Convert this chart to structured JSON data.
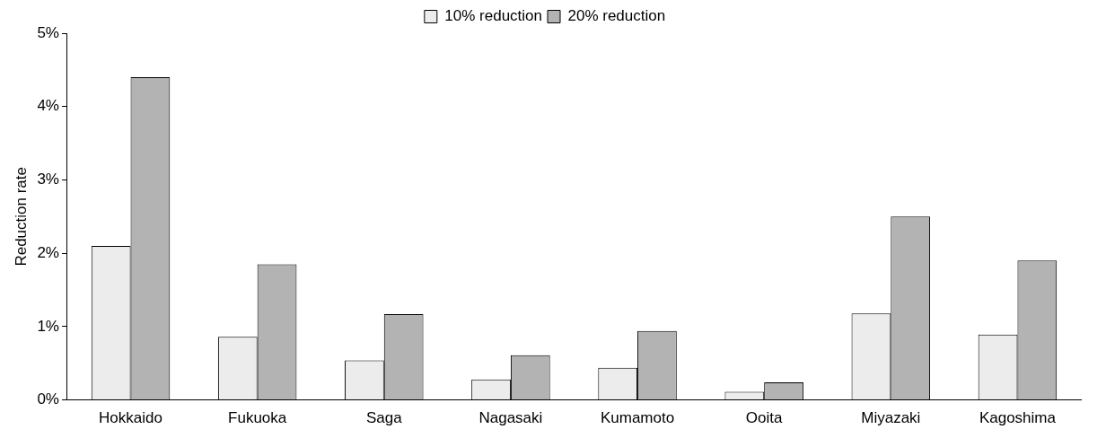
{
  "chart_data": {
    "type": "bar",
    "ylabel": "Reduction rate",
    "categories": [
      "Hokkaido",
      "Fukuoka",
      "Saga",
      "Nagasaki",
      "Kumamoto",
      "Ooita",
      "Miyazaki",
      "Kagoshima"
    ],
    "series": [
      {
        "name": "10% reduction",
        "color": "#ececec",
        "values": [
          2.1,
          0.86,
          0.54,
          0.28,
          0.44,
          0.11,
          1.18,
          0.89
        ]
      },
      {
        "name": "20% reduction",
        "color": "#b3b3b3",
        "values": [
          4.4,
          1.85,
          1.17,
          0.61,
          0.94,
          0.24,
          2.5,
          1.9
        ]
      }
    ],
    "ylim": [
      0,
      5
    ],
    "yticks": [
      {
        "value": 0,
        "label": "0%"
      },
      {
        "value": 1,
        "label": "1%"
      },
      {
        "value": 2,
        "label": "2%"
      },
      {
        "value": 3,
        "label": "3%"
      },
      {
        "value": 4,
        "label": "4%"
      },
      {
        "value": 5,
        "label": "5%"
      }
    ],
    "grid": false,
    "legend": "top"
  }
}
